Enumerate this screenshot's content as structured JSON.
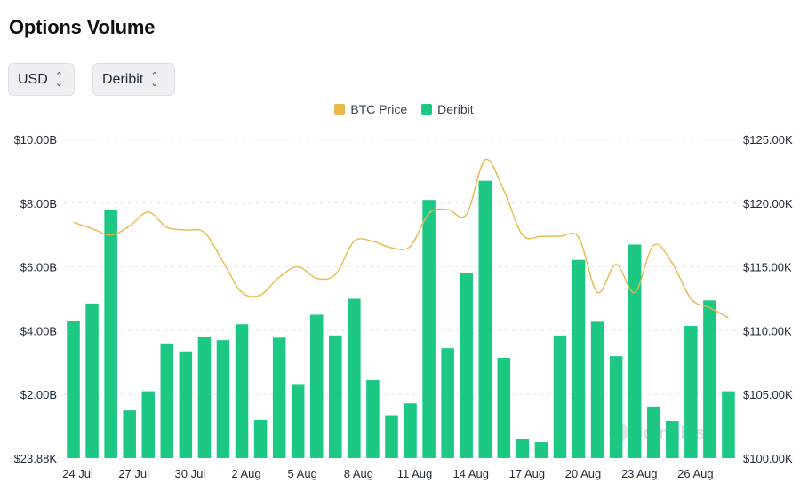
{
  "header": {
    "title": "Options Volume"
  },
  "filters": {
    "currency": {
      "label": "USD"
    },
    "exchange": {
      "label": "Deribit"
    }
  },
  "icons": {
    "selector_chevron": "chevron-up-down-icon",
    "watermark_logo": "coinglass-logo-icon"
  },
  "colors": {
    "btc_price": "#e8b94a",
    "deribit": "#1dc784",
    "grid": "#e5e7eb"
  },
  "watermark": "coinglass",
  "chart_data": {
    "type": "bar",
    "legend": [
      "BTC Price",
      "Deribit"
    ],
    "legend_position": "top-center",
    "grid": true,
    "x_tick_labels": [
      "24 Jul",
      "27 Jul",
      "30 Jul",
      "2 Aug",
      "5 Aug",
      "8 Aug",
      "11 Aug",
      "14 Aug",
      "17 Aug",
      "20 Aug",
      "23 Aug",
      "26 Aug"
    ],
    "y_left_ticks": [
      "$23.88K",
      "$2.00B",
      "$4.00B",
      "$6.00B",
      "$8.00B",
      "$10.00B"
    ],
    "y_right_ticks": [
      "$100.00K",
      "$105.00K",
      "$110.00K",
      "$115.00K",
      "$120.00K",
      "$125.00K"
    ],
    "ylim_left": [
      0,
      10
    ],
    "ylim_right": [
      100000,
      125000
    ],
    "series": [
      {
        "name": "Deribit",
        "type": "bar",
        "unit": "B USD",
        "values": [
          4.3,
          4.85,
          7.8,
          1.5,
          2.1,
          3.6,
          3.35,
          3.8,
          3.7,
          4.2,
          1.2,
          3.78,
          2.3,
          4.5,
          3.85,
          5.0,
          2.45,
          1.35,
          1.72,
          8.1,
          3.45,
          5.8,
          8.7,
          3.15,
          0.6,
          0.5,
          3.85,
          6.22,
          4.28,
          3.2,
          6.7,
          1.62,
          1.17,
          4.15,
          4.95,
          2.1
        ]
      },
      {
        "name": "BTC Price",
        "type": "line",
        "unit": "USD",
        "values": [
          118500,
          118000,
          117500,
          118200,
          119300,
          118100,
          117900,
          117700,
          115400,
          113000,
          112800,
          114200,
          115000,
          114100,
          114400,
          117000,
          117000,
          116500,
          116600,
          119200,
          119500,
          119100,
          123400,
          121000,
          117500,
          117400,
          117400,
          117300,
          113000,
          115200,
          113000,
          116700,
          115300,
          112500,
          111800,
          111000
        ]
      }
    ]
  }
}
